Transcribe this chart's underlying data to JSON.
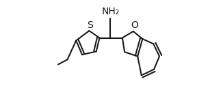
{
  "background_color": "#ffffff",
  "line_color": "#1a1a1a",
  "line_width": 1.5,
  "font_size_label": 10,
  "figsize": [
    3.26,
    1.54
  ],
  "dpi": 100,
  "xlim": [
    -0.05,
    1.05
  ],
  "ylim": [
    0.05,
    1.0
  ],
  "NH2_label": "NH₂",
  "S_label": "S",
  "O_label": "O"
}
